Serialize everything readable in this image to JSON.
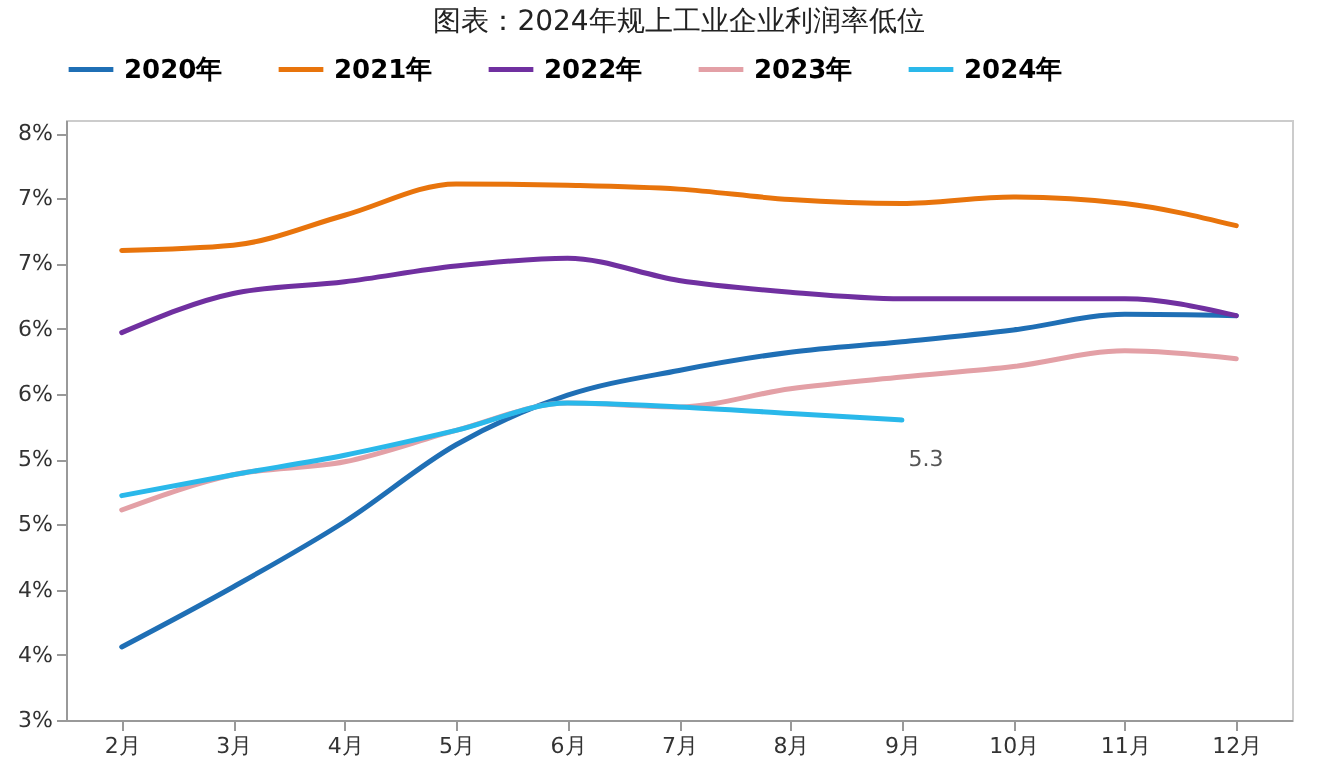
{
  "chart_data": {
    "type": "line",
    "title": "图表：2024年规上工业企业利润率低位",
    "categories": [
      "2月",
      "3月",
      "4月",
      "5月",
      "6月",
      "7月",
      "8月",
      "9月",
      "10月",
      "11月",
      "12月"
    ],
    "series": [
      {
        "name": "2020年",
        "color": "#1f6fb5",
        "values": [
          3.56,
          4.02,
          4.52,
          5.11,
          5.49,
          5.68,
          5.82,
          5.9,
          5.99,
          6.11,
          6.1
        ]
      },
      {
        "name": "2021年",
        "color": "#e8740c",
        "values": [
          6.6,
          6.64,
          6.87,
          7.11,
          7.1,
          7.07,
          6.99,
          6.96,
          7.01,
          6.96,
          6.79
        ]
      },
      {
        "name": "2022年",
        "color": "#7030a0",
        "values": [
          5.97,
          6.27,
          6.36,
          6.48,
          6.54,
          6.37,
          6.28,
          6.23,
          6.23,
          6.23,
          6.1
        ]
      },
      {
        "name": "2023年",
        "color": "#e3a0a6",
        "values": [
          4.61,
          4.88,
          4.98,
          5.22,
          5.43,
          5.4,
          5.54,
          5.63,
          5.71,
          5.83,
          5.77
        ]
      },
      {
        "name": "2024年",
        "color": "#2ab8ea",
        "values": [
          4.72,
          4.88,
          5.03,
          5.22,
          5.43,
          5.4,
          5.35,
          5.3,
          null,
          null,
          null
        ],
        "value_labels": [
          null,
          null,
          null,
          null,
          null,
          null,
          null,
          "5.3",
          null,
          null,
          null
        ]
      }
    ],
    "ylim": [
      3,
      7.6
    ],
    "yticks": [
      {
        "value": 3,
        "label": "3%"
      },
      {
        "value": 3.5,
        "label": "4%"
      },
      {
        "value": 4,
        "label": "4%"
      },
      {
        "value": 4.5,
        "label": "5%"
      },
      {
        "value": 5,
        "label": "5%"
      },
      {
        "value": 5.5,
        "label": "6%"
      },
      {
        "value": 6,
        "label": "6%"
      },
      {
        "value": 6.5,
        "label": "7%"
      },
      {
        "value": 7,
        "label": "7%"
      },
      {
        "value": 7.5,
        "label": "8%"
      }
    ],
    "legend": "top",
    "marker": "none",
    "line_style": "solid",
    "grid": false
  }
}
